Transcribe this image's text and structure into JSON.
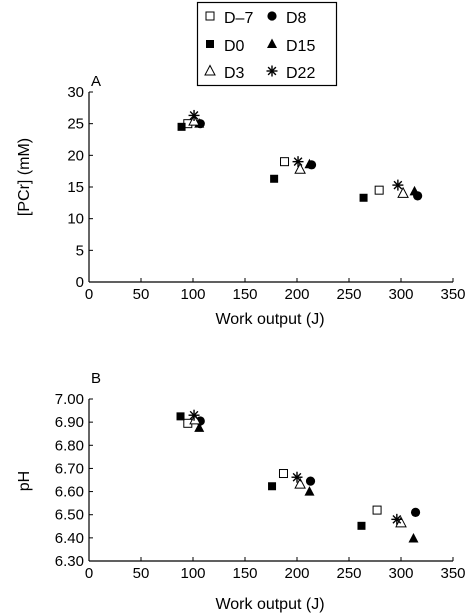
{
  "legend": {
    "entries": [
      {
        "label": "D–7",
        "marker": "open-square"
      },
      {
        "label": "D8",
        "marker": "filled-circle"
      },
      {
        "label": "D0",
        "marker": "filled-square"
      },
      {
        "label": "D15",
        "marker": "filled-triangle"
      },
      {
        "label": "D3",
        "marker": "open-triangle"
      },
      {
        "label": "D22",
        "marker": "asterisk"
      }
    ]
  },
  "chart_data": [
    {
      "type": "scatter",
      "panel_label": "A",
      "xlabel": "Work output (J)",
      "ylabel": "[PCr] (mM)",
      "xlim": [
        0,
        350
      ],
      "ylim": [
        0,
        30
      ],
      "x_ticks": [
        0,
        50,
        100,
        150,
        200,
        250,
        300,
        350
      ],
      "y_ticks": [
        0,
        5,
        10,
        15,
        20,
        25,
        30
      ],
      "x_tick_labels": [
        "0",
        "50",
        "100",
        "150",
        "200",
        "250",
        "300",
        "350"
      ],
      "y_tick_labels": [
        "0",
        "5",
        "10",
        "15",
        "20",
        "25",
        "30"
      ],
      "grid": false,
      "series": [
        {
          "name": "D–7",
          "marker": "open-square",
          "points": [
            [
              95,
              25.0
            ],
            [
              188,
              19.0
            ],
            [
              279,
              14.5
            ]
          ]
        },
        {
          "name": "D8",
          "marker": "filled-circle",
          "points": [
            [
              107,
              25.0
            ],
            [
              214,
              18.5
            ],
            [
              316,
              13.6
            ]
          ]
        },
        {
          "name": "D0",
          "marker": "filled-square",
          "points": [
            [
              89,
              24.5
            ],
            [
              178,
              16.3
            ],
            [
              264,
              13.3
            ]
          ]
        },
        {
          "name": "D15",
          "marker": "filled-triangle",
          "points": [
            [
              106,
              25.0
            ],
            [
              212,
              18.6
            ],
            [
              313,
              14.3
            ]
          ]
        },
        {
          "name": "D3",
          "marker": "open-triangle",
          "points": [
            [
              101,
              25.4
            ],
            [
              203,
              17.8
            ],
            [
              302,
              14.0
            ]
          ]
        },
        {
          "name": "D22",
          "marker": "asterisk",
          "points": [
            [
              101,
              26.3
            ],
            [
              201,
              19.0
            ],
            [
              297,
              15.3
            ]
          ]
        }
      ]
    },
    {
      "type": "scatter",
      "panel_label": "B",
      "xlabel": "Work output (J)",
      "ylabel": "pH",
      "xlim": [
        0,
        350
      ],
      "ylim": [
        6.3,
        7.0
      ],
      "x_ticks": [
        0,
        50,
        100,
        150,
        200,
        250,
        300,
        350
      ],
      "y_ticks": [
        6.3,
        6.4,
        6.5,
        6.6,
        6.7,
        6.8,
        6.9,
        7.0
      ],
      "x_tick_labels": [
        "0",
        "50",
        "100",
        "150",
        "200",
        "250",
        "300",
        "350"
      ],
      "y_tick_labels": [
        "6.30",
        "6.40",
        "6.50",
        "6.60",
        "6.70",
        "6.80",
        "6.90",
        "7.00"
      ],
      "grid": false,
      "series": [
        {
          "name": "D–7",
          "marker": "open-square",
          "points": [
            [
              95,
              6.895
            ],
            [
              187,
              6.678
            ],
            [
              277,
              6.52
            ]
          ]
        },
        {
          "name": "D8",
          "marker": "filled-circle",
          "points": [
            [
              107,
              6.905
            ],
            [
              213,
              6.645
            ],
            [
              314,
              6.51
            ]
          ]
        },
        {
          "name": "D0",
          "marker": "filled-square",
          "points": [
            [
              88,
              6.925
            ],
            [
              176,
              6.623
            ],
            [
              262,
              6.452
            ]
          ]
        },
        {
          "name": "D15",
          "marker": "filled-triangle",
          "points": [
            [
              106,
              6.875
            ],
            [
              212,
              6.6
            ],
            [
              312,
              6.397
            ]
          ]
        },
        {
          "name": "D3",
          "marker": "open-triangle",
          "points": [
            [
              102,
              6.91
            ],
            [
              203,
              6.632
            ],
            [
              300,
              6.465
            ]
          ]
        },
        {
          "name": "D22",
          "marker": "asterisk",
          "points": [
            [
              101,
              6.93
            ],
            [
              200,
              6.662
            ],
            [
              296,
              6.48
            ]
          ]
        }
      ]
    }
  ]
}
